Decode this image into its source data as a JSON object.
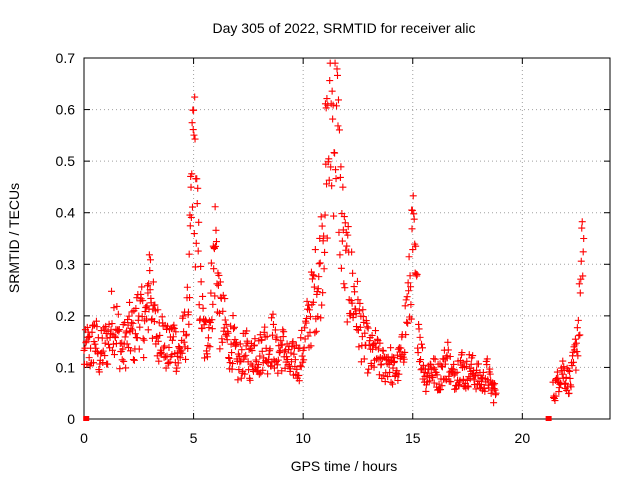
{
  "chart_data": {
    "type": "scatter",
    "title": "Day 305 of 2022, SRMTID for receiver alic",
    "xlabel": "GPS time / hours",
    "ylabel": "SRMTID / TECUs",
    "xlim": [
      0,
      24
    ],
    "ylim": [
      0,
      0.7
    ],
    "xticks": [
      "0",
      "5",
      "10",
      "15",
      "20"
    ],
    "yticks": [
      "0",
      "0.1",
      "0.2",
      "0.3",
      "0.4",
      "0.5",
      "0.6",
      "0.7"
    ],
    "grid": true,
    "marker": "+",
    "marker_color": "#ff0000",
    "series": [
      {
        "name": "SRMTID",
        "color": "#ff0000",
        "segments": [
          {
            "x": [
              0.0,
              0.15,
              0.3,
              0.5,
              0.7,
              0.9,
              1.1,
              1.3,
              1.5,
              1.7,
              1.9,
              2.1,
              2.3,
              2.5,
              2.7,
              2.9,
              3.0,
              3.1,
              3.3,
              3.5,
              3.7,
              3.9,
              4.1,
              4.3,
              4.5,
              4.7,
              4.8,
              4.9,
              5.0,
              5.1,
              5.3,
              5.5,
              5.7,
              5.9,
              6.0,
              6.2,
              6.4,
              6.6,
              6.8,
              7.0,
              7.2,
              7.4,
              7.6,
              7.8,
              8.0,
              8.2,
              8.4,
              8.6,
              8.8,
              9.0,
              9.2,
              9.4,
              9.6,
              9.8,
              10.0,
              10.2,
              10.4,
              10.6,
              10.8,
              11.0,
              11.1,
              11.3,
              11.5,
              11.7,
              11.9,
              12.1,
              12.3,
              12.5,
              12.7,
              12.9,
              13.1,
              13.3,
              13.5,
              13.7,
              13.9,
              14.1,
              14.3,
              14.5,
              14.7,
              14.9,
              15.0,
              15.2,
              15.4,
              15.6,
              15.8,
              16.0,
              16.2,
              16.4,
              16.6,
              16.8,
              17.0,
              17.2,
              17.4,
              17.6,
              17.8,
              18.0,
              18.2,
              18.4,
              18.6,
              18.8
            ],
            "y": [
              0.12,
              0.14,
              0.13,
              0.16,
              0.12,
              0.14,
              0.15,
              0.2,
              0.18,
              0.13,
              0.15,
              0.17,
              0.16,
              0.21,
              0.18,
              0.2,
              0.3,
              0.22,
              0.16,
              0.18,
              0.14,
              0.13,
              0.16,
              0.12,
              0.15,
              0.18,
              0.25,
              0.4,
              0.55,
              0.42,
              0.24,
              0.15,
              0.18,
              0.28,
              0.35,
              0.2,
              0.18,
              0.14,
              0.15,
              0.1,
              0.12,
              0.13,
              0.11,
              0.14,
              0.12,
              0.15,
              0.13,
              0.16,
              0.12,
              0.14,
              0.13,
              0.1,
              0.12,
              0.11,
              0.14,
              0.18,
              0.22,
              0.26,
              0.3,
              0.45,
              0.5,
              0.58,
              0.6,
              0.42,
              0.3,
              0.27,
              0.24,
              0.2,
              0.16,
              0.14,
              0.12,
              0.13,
              0.11,
              0.1,
              0.12,
              0.09,
              0.1,
              0.12,
              0.2,
              0.26,
              0.35,
              0.22,
              0.12,
              0.08,
              0.1,
              0.09,
              0.08,
              0.1,
              0.12,
              0.08,
              0.09,
              0.11,
              0.08,
              0.1,
              0.09,
              0.08,
              0.07,
              0.09,
              0.06,
              0.05
            ]
          },
          {
            "x": [
              21.4,
              21.6,
              21.8,
              22.0,
              22.2,
              22.4,
              22.6,
              22.8
            ],
            "y": [
              0.05,
              0.07,
              0.1,
              0.08,
              0.07,
              0.12,
              0.2,
              0.35
            ]
          }
        ]
      }
    ],
    "zero_markers_x": [
      0.1,
      21.2
    ]
  }
}
